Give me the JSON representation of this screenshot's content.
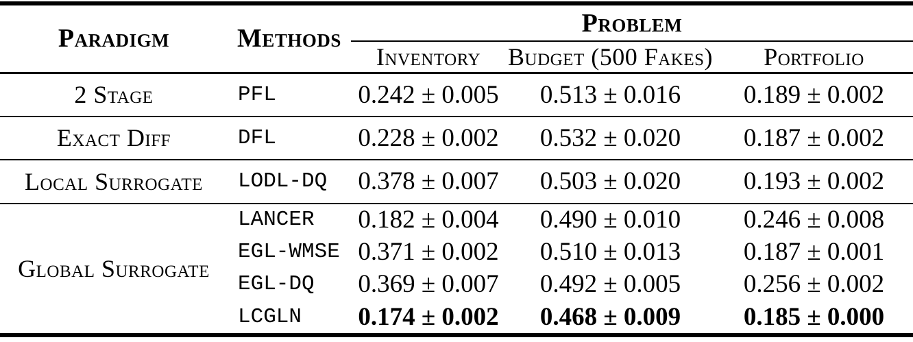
{
  "table": {
    "columns": {
      "paradigm": "Paradigm",
      "methods": "Methods",
      "problem_group": "Problem",
      "problems": [
        "Inventory",
        "Budget (500 Fakes)",
        "Portfolio"
      ]
    },
    "sections": [
      {
        "paradigm": "2 Stage",
        "rows": [
          {
            "method": "PFL",
            "bold": false,
            "inventory": "0.242 ± 0.005",
            "budget": "0.513 ± 0.016",
            "portfolio": "0.189 ± 0.002"
          }
        ]
      },
      {
        "paradigm": "Exact Diff",
        "rows": [
          {
            "method": "DFL",
            "bold": false,
            "inventory": "0.228 ± 0.002",
            "budget": "0.532 ± 0.020",
            "portfolio": "0.187 ± 0.002"
          }
        ]
      },
      {
        "paradigm": "Local Surrogate",
        "rows": [
          {
            "method": "LODL-DQ",
            "bold": false,
            "inventory": "0.378 ± 0.007",
            "budget": "0.503 ± 0.020",
            "portfolio": "0.193 ± 0.002"
          }
        ]
      },
      {
        "paradigm": "Global Surrogate",
        "rows": [
          {
            "method": "LANCER",
            "bold": false,
            "inventory": "0.182 ± 0.004",
            "budget": "0.490 ± 0.010",
            "portfolio": "0.246 ± 0.008"
          },
          {
            "method": "EGL-WMSE",
            "bold": false,
            "inventory": "0.371 ± 0.002",
            "budget": "0.510 ± 0.013",
            "portfolio": "0.187 ± 0.001"
          },
          {
            "method": "EGL-DQ",
            "bold": false,
            "inventory": "0.369 ± 0.007",
            "budget": "0.492 ± 0.005",
            "portfolio": "0.256 ± 0.002"
          },
          {
            "method": "LCGLN",
            "bold": true,
            "inventory": "0.174 ± 0.002",
            "budget": "0.468 ± 0.009",
            "portfolio": "0.185 ± 0.000"
          }
        ]
      }
    ]
  }
}
